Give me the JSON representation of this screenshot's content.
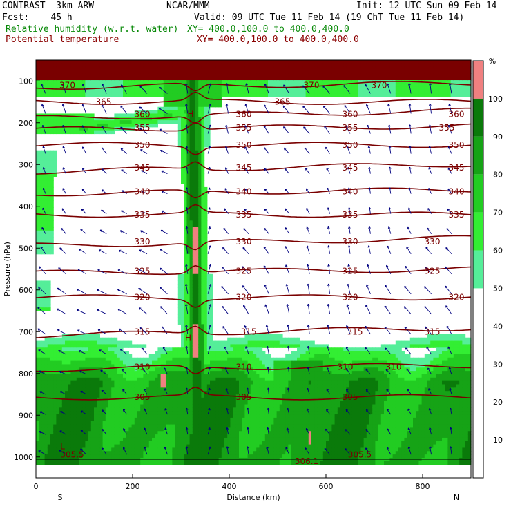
{
  "header": {
    "model": "CONTRAST  3km ARW",
    "forecast": "Fcst:    45 h",
    "center": "NCAR/MMM",
    "init": "Init: 12 UTC Sun 09 Feb 14",
    "valid": "Valid: 09 UTC Tue 11 Feb 14 (19 ChT Tue 11 Feb 14)",
    "field1_name": "Relative humidity (w.r.t. water)",
    "field1_xy": "XY= 400.0,100.0 to 400.0,400.0",
    "field2_name": "Potential temperature",
    "field2_xy": "XY= 400.0,100.0 to 400.0,400.0"
  },
  "colors": {
    "rh_levels": [
      "#ffffff",
      "#ffffff",
      "#ffffff",
      "#ffffff",
      "#ffffff",
      "#55ee99",
      "#33ee33",
      "#22cc22",
      "#16a316",
      "#0a7a0a",
      "#f08080",
      "#7a0000"
    ],
    "theta": "#7a0000",
    "wind": "#000080",
    "ground": "#000000"
  },
  "chart_data": {
    "type": "heatmap",
    "xlabel": "Distance (km)",
    "ylabel": "Pressure (hPa)",
    "xlim": [
      0,
      900
    ],
    "ylim": [
      1050,
      50
    ],
    "x_ticks": [
      0,
      200,
      400,
      600,
      800
    ],
    "y_ticks": [
      100,
      200,
      300,
      400,
      500,
      600,
      700,
      800,
      900,
      1000
    ],
    "x_end_labels": {
      "left": "S",
      "right": "N"
    },
    "colorbar": {
      "unit": "%",
      "ticks": [
        10,
        20,
        30,
        40,
        50,
        60,
        70,
        80,
        90,
        100
      ]
    },
    "theta_contours": [
      {
        "value": 305,
        "label": "305",
        "p": 857,
        "labels_x": [
          220,
          430,
          650
        ]
      },
      {
        "value": 310,
        "label": "310",
        "p": 785,
        "labels_x": [
          220,
          430,
          640,
          740
        ]
      },
      {
        "value": 315,
        "label": "315",
        "p": 700,
        "labels_x": [
          220,
          440,
          660,
          820
        ]
      },
      {
        "value": 320,
        "label": "320",
        "p": 618,
        "labels_x": [
          220,
          430,
          650,
          870
        ]
      },
      {
        "value": 325,
        "label": "325",
        "p": 555,
        "labels_x": [
          220,
          430,
          650,
          820
        ]
      },
      {
        "value": 330,
        "label": "330",
        "p": 485,
        "labels_x": [
          220,
          430,
          650,
          820
        ]
      },
      {
        "value": 335,
        "label": "335",
        "p": 420,
        "labels_x": [
          220,
          430,
          650,
          870
        ]
      },
      {
        "value": 340,
        "label": "340",
        "p": 365,
        "labels_x": [
          220,
          430,
          650,
          870
        ]
      },
      {
        "value": 345,
        "label": "345",
        "p": 308,
        "labels_x": [
          220,
          430,
          650,
          870
        ]
      },
      {
        "value": 350,
        "label": "350",
        "p": 253,
        "labels_x": [
          220,
          430,
          650,
          870
        ]
      },
      {
        "value": 355,
        "label": "355",
        "p": 212,
        "labels_x": [
          220,
          430,
          650,
          850
        ]
      },
      {
        "value": 360,
        "label": "360",
        "p": 180,
        "labels_x": [
          220,
          430,
          650,
          870
        ]
      },
      {
        "value": 365,
        "label": "365",
        "p": 150,
        "labels_x": [
          140,
          510
        ]
      },
      {
        "value": 370,
        "label": "370",
        "p": 110,
        "labels_x": [
          65,
          570,
          710
        ]
      }
    ],
    "extra_labels": [
      {
        "text": "H",
        "x": 320,
        "p": 180
      },
      {
        "text": "H",
        "x": 315,
        "p": 715
      },
      {
        "text": "L",
        "x": 55,
        "p": 975
      },
      {
        "text": "305.5",
        "x": 75,
        "p": 995
      },
      {
        "text": "306.1",
        "x": 560,
        "p": 1010
      },
      {
        "text": "305.5",
        "x": 670,
        "p": 995
      }
    ]
  }
}
